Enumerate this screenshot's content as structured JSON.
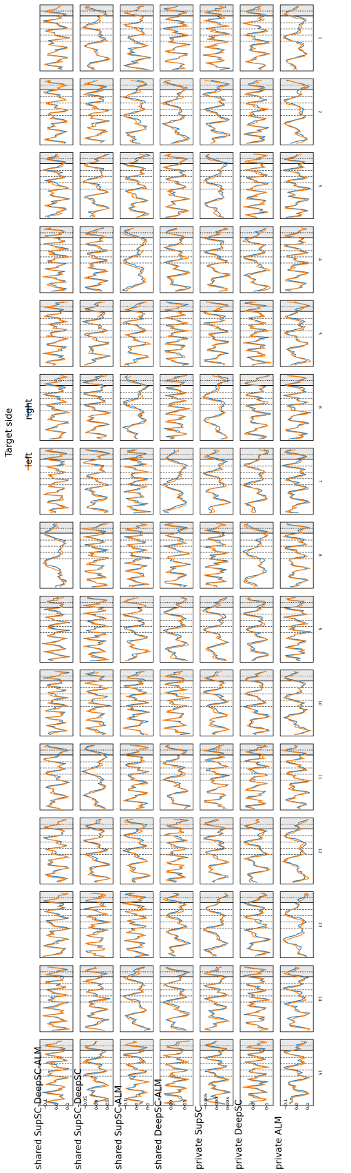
{
  "chart_data": {
    "type": "line",
    "layout": "small-multiples grid (7 rows x 15 columns), figure rotated 90 degrees",
    "legend": {
      "title": "Target side",
      "entries": [
        {
          "name": "right",
          "color": "#1f77b4"
        },
        {
          "name": "left",
          "color": "#ff7f0e"
        }
      ],
      "placement": "top-center"
    },
    "rows": [
      {
        "label": "shared SupSC-DeepSC-ALM",
        "ticks": [
          "0.1",
          "0.0",
          "−0.1"
        ],
        "tick_values": [
          0.1,
          0.0,
          -0.1
        ],
        "ylim": [
          -0.15,
          0.15
        ]
      },
      {
        "label": "shared SupSC-DeepSC",
        "ticks": [
          "0.05",
          "0.00",
          "−0.05"
        ],
        "tick_values": [
          0.05,
          0.0,
          -0.05
        ],
        "ylim": [
          -0.075,
          0.075
        ]
      },
      {
        "label": "shared SupSC-ALM",
        "ticks": [
          "0.1",
          "0.0",
          "−0.1"
        ],
        "tick_values": [
          0.1,
          0.0,
          -0.1
        ],
        "ylim": [
          -0.15,
          0.15
        ]
      },
      {
        "label": "shared DeepSC-ALM",
        "ticks": [
          "0.05",
          "0.00"
        ],
        "tick_values": [
          0.05,
          0.0
        ],
        "ylim": [
          -0.04,
          0.08
        ]
      },
      {
        "label": "private SupSC",
        "ticks": [
          "0.005",
          "0.000",
          "−0.005"
        ],
        "tick_values": [
          0.005,
          0.0,
          -0.005
        ],
        "ylim": [
          -0.0075,
          0.0075
        ]
      },
      {
        "label": "private DeepSC",
        "ticks": [
          "0.1",
          "0.0"
        ],
        "tick_values": [
          0.1,
          0.0
        ],
        "ylim": [
          -0.1,
          0.15
        ]
      },
      {
        "label": "private ALM",
        "ticks": [
          "0.1",
          "0.0",
          "−0.1"
        ],
        "tick_values": [
          0.1,
          0.0,
          -0.1
        ],
        "ylim": [
          -0.15,
          0.15
        ]
      }
    ],
    "columns": [
      "1",
      "2",
      "3",
      "4",
      "5",
      "6",
      "7",
      "8",
      "9",
      "10",
      "11",
      "12",
      "13",
      "14",
      "15"
    ],
    "series": [
      {
        "name": "right",
        "color": "#1f77b4"
      },
      {
        "name": "left",
        "color": "#ff7f0e"
      }
    ],
    "grid": false
  }
}
